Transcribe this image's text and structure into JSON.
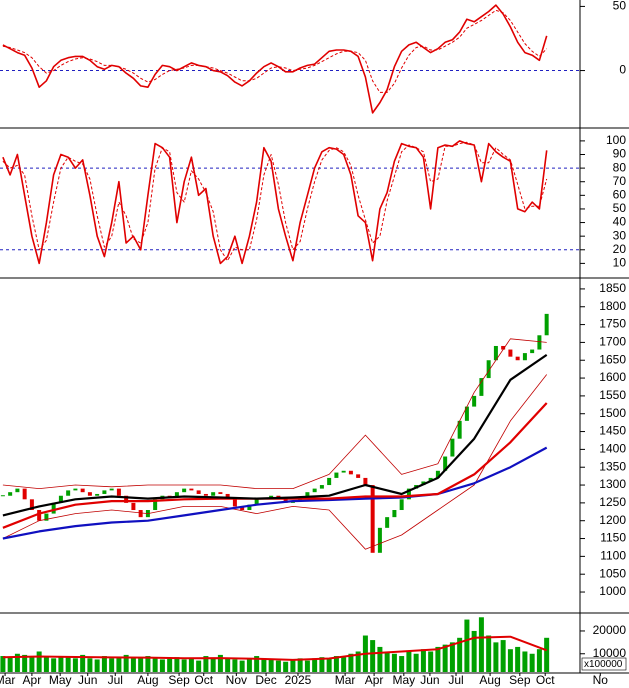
{
  "chart_data": [
    {
      "type": "line",
      "xlim": [
        -0.4,
        79.6
      ],
      "ylim": [
        -44,
        55
      ],
      "yticks": [
        0,
        50
      ],
      "reference_lines": [
        0
      ],
      "series": [
        {
          "color": "#e00000",
          "values": [
            20,
            17,
            14,
            12,
            2,
            -13,
            -8,
            3,
            8,
            10,
            11,
            11,
            8,
            3,
            1,
            4,
            3,
            -2,
            -6,
            -12,
            -13,
            -3,
            4,
            3,
            0,
            3,
            6,
            4,
            3,
            0,
            -1,
            -4,
            -9,
            -12,
            -8,
            -2,
            3,
            6,
            3,
            -1,
            -1,
            2,
            4,
            5,
            10,
            15,
            16,
            16,
            15,
            11,
            -5,
            -33,
            -25,
            -15,
            3,
            15,
            20,
            22,
            18,
            14,
            17,
            22,
            24,
            30,
            40,
            38,
            42,
            46,
            51,
            44,
            34,
            22,
            14,
            12,
            8,
            27
          ]
        },
        {
          "color": "#e00000",
          "dashed": true,
          "values": [
            19,
            18,
            16,
            14,
            10,
            3,
            -2,
            0,
            4,
            7,
            9,
            10,
            9,
            7,
            4,
            4,
            3,
            1,
            -2,
            -6,
            -9,
            -7,
            -3,
            0,
            1,
            2,
            4,
            4,
            3,
            2,
            0,
            -2,
            -5,
            -8,
            -8,
            -6,
            -2,
            2,
            3,
            2,
            0,
            1,
            2,
            4,
            7,
            10,
            13,
            15,
            15,
            14,
            8,
            -8,
            -17,
            -17,
            -10,
            2,
            12,
            18,
            19,
            16,
            16,
            19,
            22,
            26,
            33,
            36,
            39,
            43,
            47,
            45,
            39,
            30,
            21,
            15,
            11,
            17
          ]
        }
      ]
    },
    {
      "type": "line",
      "xlim": [
        -0.4,
        79.6
      ],
      "ylim": [
        0,
        108
      ],
      "yticks": [
        10,
        20,
        30,
        40,
        50,
        60,
        70,
        80,
        90,
        100
      ],
      "reference_lines": [
        20,
        80
      ],
      "series": [
        {
          "color": "#e00000",
          "values": [
            88,
            75,
            90,
            60,
            30,
            10,
            40,
            75,
            90,
            88,
            80,
            86,
            60,
            30,
            15,
            40,
            70,
            25,
            30,
            20,
            60,
            98,
            95,
            88,
            40,
            70,
            88,
            60,
            65,
            30,
            10,
            15,
            30,
            10,
            30,
            55,
            95,
            85,
            50,
            30,
            12,
            40,
            60,
            80,
            92,
            95,
            94,
            90,
            75,
            45,
            40,
            12,
            50,
            62,
            85,
            98,
            96,
            95,
            88,
            50,
            95,
            97,
            96,
            100,
            98,
            97,
            70,
            98,
            92,
            88,
            85,
            50,
            48,
            55,
            50,
            93
          ]
        },
        {
          "color": "#e00000",
          "dashed": true,
          "values": [
            85,
            80,
            82,
            75,
            45,
            20,
            27,
            55,
            80,
            88,
            85,
            83,
            72,
            45,
            22,
            30,
            55,
            45,
            28,
            25,
            40,
            80,
            95,
            92,
            62,
            55,
            78,
            72,
            62,
            48,
            20,
            12,
            22,
            20,
            20,
            42,
            75,
            90,
            68,
            40,
            20,
            26,
            50,
            70,
            86,
            93,
            95,
            92,
            82,
            60,
            42,
            25,
            30,
            56,
            74,
            92,
            97,
            95,
            92,
            70,
            72,
            96,
            96,
            98,
            99,
            97,
            84,
            84,
            95,
            90,
            86,
            68,
            50,
            52,
            52,
            72
          ]
        }
      ]
    },
    {
      "type": "candlestick",
      "xlim": [
        -0.4,
        79.6
      ],
      "ylim": [
        944,
        1875
      ],
      "yticks": [
        1000,
        1050,
        1100,
        1150,
        1200,
        1250,
        1300,
        1350,
        1400,
        1450,
        1500,
        1550,
        1600,
        1650,
        1700,
        1750,
        1800,
        1850
      ],
      "up_color": "#00a000",
      "down_color": "#e00000",
      "close": [
        1270,
        1280,
        1290,
        1260,
        1230,
        1200,
        1220,
        1250,
        1270,
        1285,
        1290,
        1280,
        1270,
        1275,
        1285,
        1290,
        1270,
        1250,
        1230,
        1210,
        1230,
        1260,
        1270,
        1265,
        1280,
        1290,
        1285,
        1275,
        1270,
        1280,
        1275,
        1260,
        1240,
        1230,
        1245,
        1260,
        1265,
        1270,
        1260,
        1250,
        1255,
        1265,
        1280,
        1290,
        1300,
        1320,
        1335,
        1340,
        1330,
        1320,
        1300,
        1110,
        1180,
        1210,
        1230,
        1260,
        1290,
        1300,
        1310,
        1320,
        1340,
        1380,
        1430,
        1480,
        1520,
        1550,
        1600,
        1650,
        1690,
        1680,
        1660,
        1650,
        1670,
        1680,
        1720,
        1780
      ],
      "series": [
        {
          "color": "#c00000",
          "width": 0.8,
          "x": [
            0,
            5,
            10,
            15,
            20,
            25,
            30,
            35,
            40,
            45,
            50,
            55,
            60,
            65,
            70,
            75
          ],
          "values": [
            1300,
            1290,
            1300,
            1295,
            1300,
            1300,
            1300,
            1290,
            1290,
            1330,
            1440,
            1330,
            1360,
            1560,
            1710,
            1700
          ]
        },
        {
          "color": "#c00000",
          "width": 0.8,
          "x": [
            0,
            5,
            10,
            15,
            20,
            25,
            30,
            35,
            40,
            45,
            50,
            55,
            60,
            65,
            70,
            75
          ],
          "values": [
            1150,
            1200,
            1220,
            1230,
            1220,
            1240,
            1240,
            1220,
            1240,
            1230,
            1120,
            1160,
            1230,
            1300,
            1480,
            1610
          ]
        },
        {
          "color": "#1010c0",
          "width": 2.2,
          "x": [
            0,
            5,
            10,
            15,
            20,
            25,
            30,
            35,
            40,
            45,
            50,
            55,
            60,
            65,
            70,
            75
          ],
          "values": [
            1150,
            1170,
            1185,
            1195,
            1200,
            1215,
            1230,
            1245,
            1255,
            1258,
            1262,
            1265,
            1275,
            1305,
            1350,
            1405
          ]
        },
        {
          "color": "#e00000",
          "width": 2.2,
          "x": [
            0,
            5,
            10,
            15,
            20,
            25,
            30,
            35,
            40,
            45,
            50,
            55,
            60,
            65,
            70,
            75
          ],
          "values": [
            1180,
            1220,
            1245,
            1255,
            1255,
            1260,
            1262,
            1262,
            1262,
            1262,
            1268,
            1268,
            1275,
            1330,
            1420,
            1530
          ]
        },
        {
          "color": "#000000",
          "width": 2.2,
          "x": [
            0,
            5,
            10,
            15,
            20,
            25,
            30,
            35,
            40,
            45,
            50,
            55,
            60,
            65,
            70,
            75
          ],
          "values": [
            1215,
            1240,
            1260,
            1268,
            1262,
            1268,
            1265,
            1262,
            1265,
            1270,
            1300,
            1275,
            1320,
            1430,
            1595,
            1665
          ]
        }
      ]
    },
    {
      "type": "bar",
      "xlim": [
        -0.4,
        79.6
      ],
      "ylim": [
        2000,
        27000
      ],
      "yticks": [
        10000,
        20000
      ],
      "unit_label": "x100000",
      "color": "#00a000",
      "values": [
        9000,
        8500,
        10000,
        9500,
        9000,
        11000,
        9000,
        8000,
        8500,
        9000,
        8000,
        9500,
        8000,
        7500,
        9000,
        8000,
        8500,
        9500,
        8000,
        8000,
        9000,
        8000,
        7500,
        8000,
        8500,
        7500,
        8000,
        7000,
        9000,
        8000,
        9500,
        8000,
        7500,
        7000,
        7500,
        9000,
        8000,
        7500,
        7000,
        6500,
        7500,
        8000,
        7000,
        8000,
        8500,
        8000,
        9000,
        8500,
        10000,
        11000,
        18000,
        16000,
        13000,
        11000,
        10000,
        9000,
        11000,
        10000,
        12000,
        11000,
        13000,
        14000,
        15000,
        17000,
        25000,
        20000,
        26000,
        18000,
        15000,
        16000,
        12000,
        13000,
        11000,
        10000,
        12000,
        17000
      ],
      "series": [
        {
          "color": "#e00000",
          "width": 2,
          "x": [
            0,
            5,
            10,
            15,
            20,
            25,
            30,
            35,
            40,
            45,
            50,
            55,
            60,
            65,
            70,
            75
          ],
          "values": [
            8500,
            8800,
            8600,
            8400,
            8300,
            8000,
            8100,
            7800,
            7300,
            7900,
            10000,
            11000,
            12000,
            17000,
            17500,
            11500
          ]
        }
      ],
      "xticks": [
        {
          "value": 0.3,
          "label": "Mar"
        },
        {
          "value": 4,
          "label": "Apr"
        },
        {
          "value": 7.9,
          "label": "May"
        },
        {
          "value": 11.7,
          "label": "Jun"
        },
        {
          "value": 15.5,
          "label": "Jul"
        },
        {
          "value": 20,
          "label": "Aug"
        },
        {
          "value": 24.3,
          "label": "Sep"
        },
        {
          "value": 27.7,
          "label": "Oct"
        },
        {
          "value": 32.2,
          "label": "Nov"
        },
        {
          "value": 36.3,
          "label": "Dec"
        },
        {
          "value": 40.7,
          "label": "2025"
        },
        {
          "value": 47.2,
          "label": "Mar"
        },
        {
          "value": 51.2,
          "label": "Apr"
        },
        {
          "value": 55.3,
          "label": "May"
        },
        {
          "value": 58.9,
          "label": "Jun"
        },
        {
          "value": 62.5,
          "label": "Jul"
        },
        {
          "value": 67.2,
          "label": "Aug"
        },
        {
          "value": 71.3,
          "label": "Sep"
        },
        {
          "value": 74.8,
          "label": "Oct"
        },
        {
          "value": 82.4,
          "label": "No"
        }
      ]
    }
  ]
}
